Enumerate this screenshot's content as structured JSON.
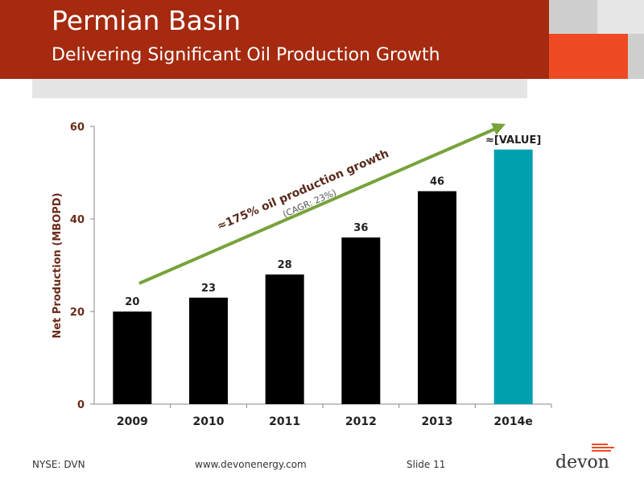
{
  "header": {
    "title": "Permian Basin",
    "subtitle": "Delivering Significant Oil Production Growth"
  },
  "chart_data": {
    "type": "bar",
    "categories": [
      "2009",
      "2010",
      "2011",
      "2012",
      "2013",
      "2014e"
    ],
    "values": [
      20,
      23,
      28,
      36,
      46,
      55
    ],
    "data_labels": [
      "20",
      "23",
      "28",
      "36",
      "46",
      "≈[VALUE]"
    ],
    "bar_colors": [
      "#000000",
      "#000000",
      "#000000",
      "#000000",
      "#000000",
      "#00a0b0"
    ],
    "ylabel": "Net Production (MBOPD)",
    "yticks": [
      0,
      20,
      40,
      60
    ],
    "ylim": [
      0,
      60
    ],
    "y_axis_mapping": "non-linear: 0 at baseline, 20/40/60 evenly spaced above",
    "annotation": {
      "main": "≈175% oil production growth",
      "sub": "(CAGR: 23%)",
      "arrow_color": "#77a33a"
    }
  },
  "footer": {
    "ticker": "NYSE: DVN",
    "website": "www.devonenergy.com",
    "slide": "Slide 11",
    "logo": "devon"
  },
  "colors": {
    "banner": "#a52a0f",
    "accent": "#ef4a23",
    "teal": "#00a0b0",
    "axis_text": "#6b2b1a"
  }
}
